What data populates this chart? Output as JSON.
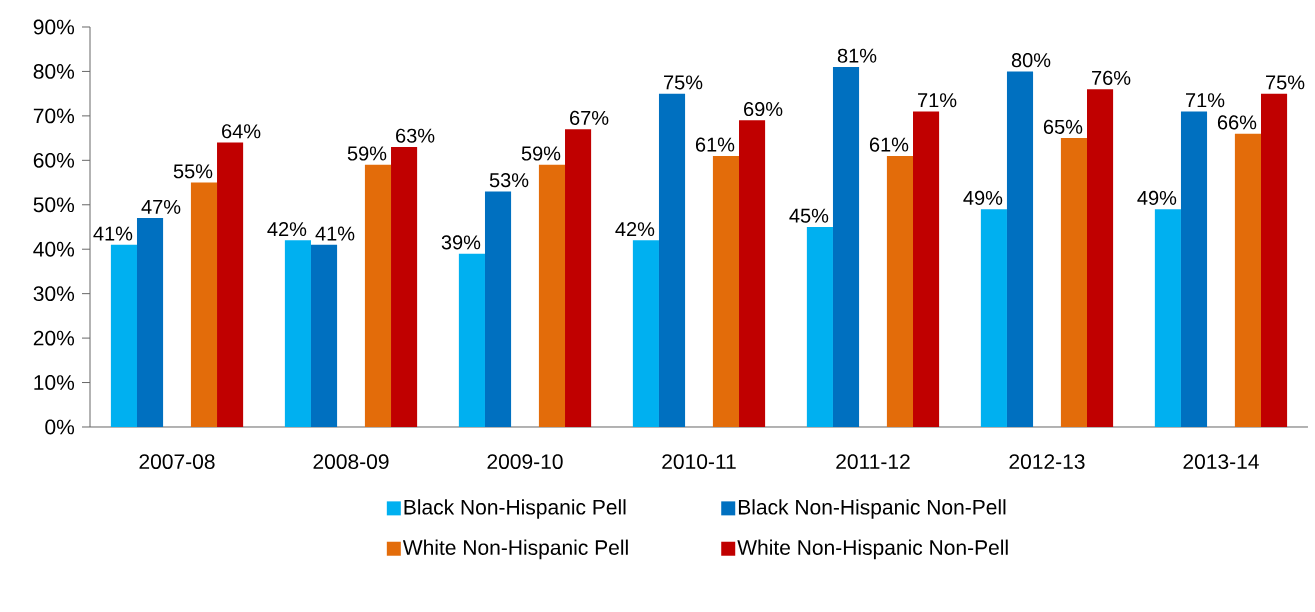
{
  "chart_data": {
    "type": "bar",
    "categories": [
      "2007-08",
      "2008-09",
      "2009-10",
      "2010-11",
      "2011-12",
      "2012-13",
      "2013-14"
    ],
    "series": [
      {
        "name": "Black Non-Hispanic Pell",
        "color": "#00b0f0",
        "values": [
          41,
          42,
          39,
          42,
          45,
          49,
          49
        ],
        "value_labels": [
          "41%",
          "42%",
          "39%",
          "42%",
          "45%",
          "49%",
          "49%"
        ]
      },
      {
        "name": "Black Non-Hispanic Non-Pell",
        "color": "#0070c0",
        "values": [
          47,
          41,
          53,
          75,
          81,
          80,
          71
        ],
        "value_labels": [
          "47%",
          "41%",
          "53%",
          "75%",
          "81%",
          "80%",
          "71%"
        ]
      },
      {
        "name": "White Non-Hispanic Pell",
        "color": "#e36c0a",
        "values": [
          55,
          59,
          59,
          61,
          61,
          65,
          66
        ],
        "value_labels": [
          "55%",
          "59%",
          "59%",
          "61%",
          "61%",
          "65%",
          "66%"
        ]
      },
      {
        "name": "White Non-Hispanic Non-Pell",
        "color": "#c00000",
        "values": [
          64,
          63,
          67,
          69,
          71,
          76,
          75
        ],
        "value_labels": [
          "64%",
          "63%",
          "67%",
          "69%",
          "71%",
          "76%",
          "75%"
        ]
      }
    ],
    "ylim": [
      0,
      90
    ],
    "yticks": [
      {
        "value": 0,
        "label": "0%"
      },
      {
        "value": 10,
        "label": "10%"
      },
      {
        "value": 20,
        "label": "20%"
      },
      {
        "value": 30,
        "label": "30%"
      },
      {
        "value": 40,
        "label": "40%"
      },
      {
        "value": 50,
        "label": "50%"
      },
      {
        "value": 60,
        "label": "60%"
      },
      {
        "value": 70,
        "label": "70%"
      },
      {
        "value": 80,
        "label": "80%"
      },
      {
        "value": 90,
        "label": "90%"
      }
    ],
    "grid": false,
    "legend": "bottom"
  }
}
